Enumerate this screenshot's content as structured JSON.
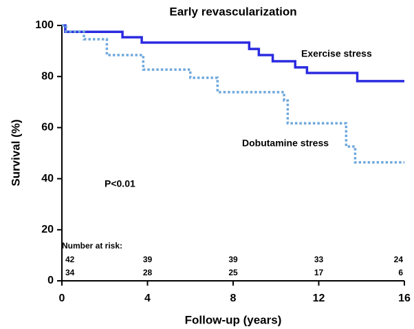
{
  "chart_data": {
    "type": "step",
    "title": "Early revascularization",
    "x_label": "Follow-up (years)",
    "y_label": "Survival (%)",
    "xlim": [
      0,
      16
    ],
    "xticks": [
      0,
      4,
      8,
      12,
      16
    ],
    "ylim": [
      0,
      100
    ],
    "yticks": [
      0,
      20,
      40,
      60,
      80,
      100
    ],
    "series": [
      {
        "name": "Exercise stress",
        "color": "#2b2be0",
        "line_style": "solid",
        "x": [
          0,
          0.16,
          2.83,
          3.73,
          8.75,
          9.2,
          9.85,
          10.9,
          11.45,
          13.8,
          16
        ],
        "values": [
          100,
          97.5,
          95.4,
          93.3,
          90.8,
          88.4,
          86,
          83.6,
          81.4,
          78.2,
          78.2
        ]
      },
      {
        "name": "Dobutamine stress",
        "color": "#6fa8dc",
        "line_style": "dotted",
        "x": [
          0,
          0.2,
          1.03,
          2.1,
          3.8,
          6.0,
          7.27,
          10.38,
          10.55,
          13.28,
          13.7,
          16
        ],
        "values": [
          100,
          97.6,
          94.6,
          88.4,
          82.7,
          79.5,
          73.9,
          70.6,
          61.7,
          52.6,
          46.4,
          46.4
        ]
      }
    ],
    "annotations": [
      "P<0.01"
    ],
    "risk_table": {
      "title": "Number at risk:",
      "rows": [
        [
          42,
          39,
          39,
          33,
          24
        ],
        [
          34,
          28,
          25,
          17,
          6
        ]
      ]
    }
  }
}
